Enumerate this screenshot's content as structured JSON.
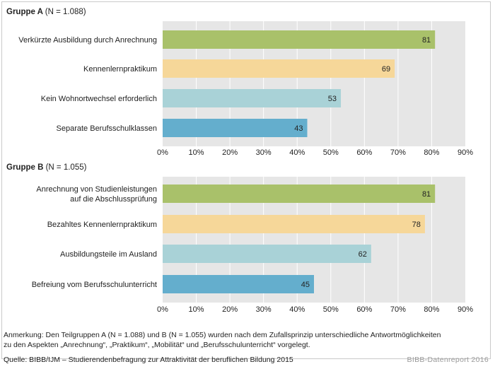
{
  "chart_data": [
    {
      "type": "bar",
      "orientation": "horizontal",
      "title": "Gruppe A (N = 1.088)",
      "title_bold": "Gruppe A",
      "title_rest": "(N = 1.088)",
      "categories": [
        [
          "Verkürzte Ausbildung durch Anrechnung"
        ],
        [
          "Kennenlernpraktikum"
        ],
        [
          "Kein Wohnortwechsel erforderlich"
        ],
        [
          "Separate Berufsschulklassen"
        ]
      ],
      "values": [
        81,
        69,
        53,
        43
      ],
      "colors": [
        "#a9c16a",
        "#f6d799",
        "#a9d2d7",
        "#64aecd"
      ],
      "xlim": [
        0,
        90
      ],
      "xticks": [
        "0%",
        "10%",
        "20%",
        "30%",
        "40%",
        "50%",
        "60%",
        "70%",
        "80%",
        "90%"
      ],
      "grid": true
    },
    {
      "type": "bar",
      "orientation": "horizontal",
      "title": "Gruppe B (N = 1.055)",
      "title_bold": "Gruppe B",
      "title_rest": "(N = 1.055)",
      "categories": [
        [
          "Anrechnung von Studienleistungen",
          "auf die Abschlussprüfung"
        ],
        [
          "Bezahltes Kennenlernpraktikum"
        ],
        [
          "Ausbildungsteile im Ausland"
        ],
        [
          "Befreiung vom Berufsschulunterricht"
        ]
      ],
      "values": [
        81,
        78,
        62,
        45
      ],
      "colors": [
        "#a9c16a",
        "#f6d799",
        "#a9d2d7",
        "#64aecd"
      ],
      "xlim": [
        0,
        90
      ],
      "xticks": [
        "0%",
        "10%",
        "20%",
        "30%",
        "40%",
        "50%",
        "60%",
        "70%",
        "80%",
        "90%"
      ],
      "grid": true
    }
  ],
  "colors": {
    "plot_background": "#e6e6e6",
    "gridline": "#ffffff",
    "label_band": "#ffffff"
  },
  "footer": {
    "note_line1": "Anmerkung: Den Teilgruppen A (N = 1.088) und B (N = 1.055) wurden nach dem Zufallsprinzip unterschiedliche Antwortmöglichkeiten",
    "note_line2": "zu den Aspekten „Anrechnung“, „Praktikum“, „Mobilität“ und „Berufsschulunterricht“ vorgelegt.",
    "source": "Quelle: BIBB/IJM – Studierendenbefragung zur Attraktivität der beruflichen Bildung 2015",
    "report": "BIBB-Datenreport 2016"
  }
}
